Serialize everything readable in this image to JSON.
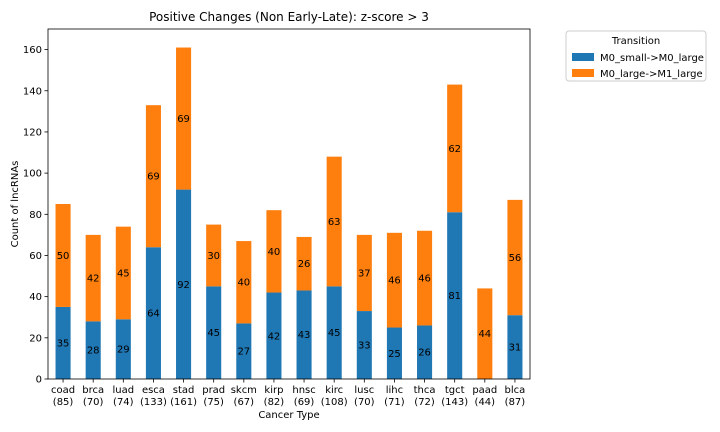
{
  "colors": {
    "series_1": "#1f77b4",
    "series_2": "#ff7f0e",
    "axis": "#000000",
    "legend_border": "#cccccc"
  },
  "chart_data": {
    "type": "bar",
    "stacked": true,
    "title": "Positive Changes (Non Early-Late): z-score > 3",
    "xlabel": "Cancer Type",
    "ylabel": "Count of lncRNAs",
    "ylim": [
      0,
      170
    ],
    "yticks": [
      0,
      20,
      40,
      60,
      80,
      100,
      120,
      140,
      160
    ],
    "grid": false,
    "legend_title": "Transition",
    "legend_position": "outside-top-right",
    "categories": [
      "coad",
      "brca",
      "luad",
      "esca",
      "stad",
      "prad",
      "skcm",
      "kirp",
      "hnsc",
      "kirc",
      "lusc",
      "lihc",
      "thca",
      "tgct",
      "paad",
      "blca"
    ],
    "category_totals": [
      "(85)",
      "(70)",
      "(74)",
      "(133)",
      "(161)",
      "(75)",
      "(67)",
      "(82)",
      "(69)",
      "(108)",
      "(70)",
      "(71)",
      "(72)",
      "(143)",
      "(44)",
      "(87)"
    ],
    "series": [
      {
        "name": "M0_small->M0_large",
        "values": [
          35,
          28,
          29,
          64,
          92,
          45,
          27,
          42,
          43,
          45,
          33,
          25,
          26,
          81,
          0,
          31
        ],
        "labels": [
          "35",
          "28",
          "29",
          "64",
          "92",
          "45",
          "27",
          "42",
          "43",
          "45",
          "33",
          "25",
          "26",
          "81",
          "",
          "31"
        ]
      },
      {
        "name": "M0_large->M1_large",
        "values": [
          50,
          42,
          45,
          69,
          69,
          30,
          40,
          40,
          26,
          63,
          37,
          46,
          46,
          62,
          44,
          56
        ],
        "labels": [
          "50",
          "42",
          "45",
          "69",
          "69",
          "30",
          "40",
          "40",
          "26",
          "63",
          "37",
          "46",
          "46",
          "62",
          "44",
          "56"
        ]
      }
    ]
  }
}
